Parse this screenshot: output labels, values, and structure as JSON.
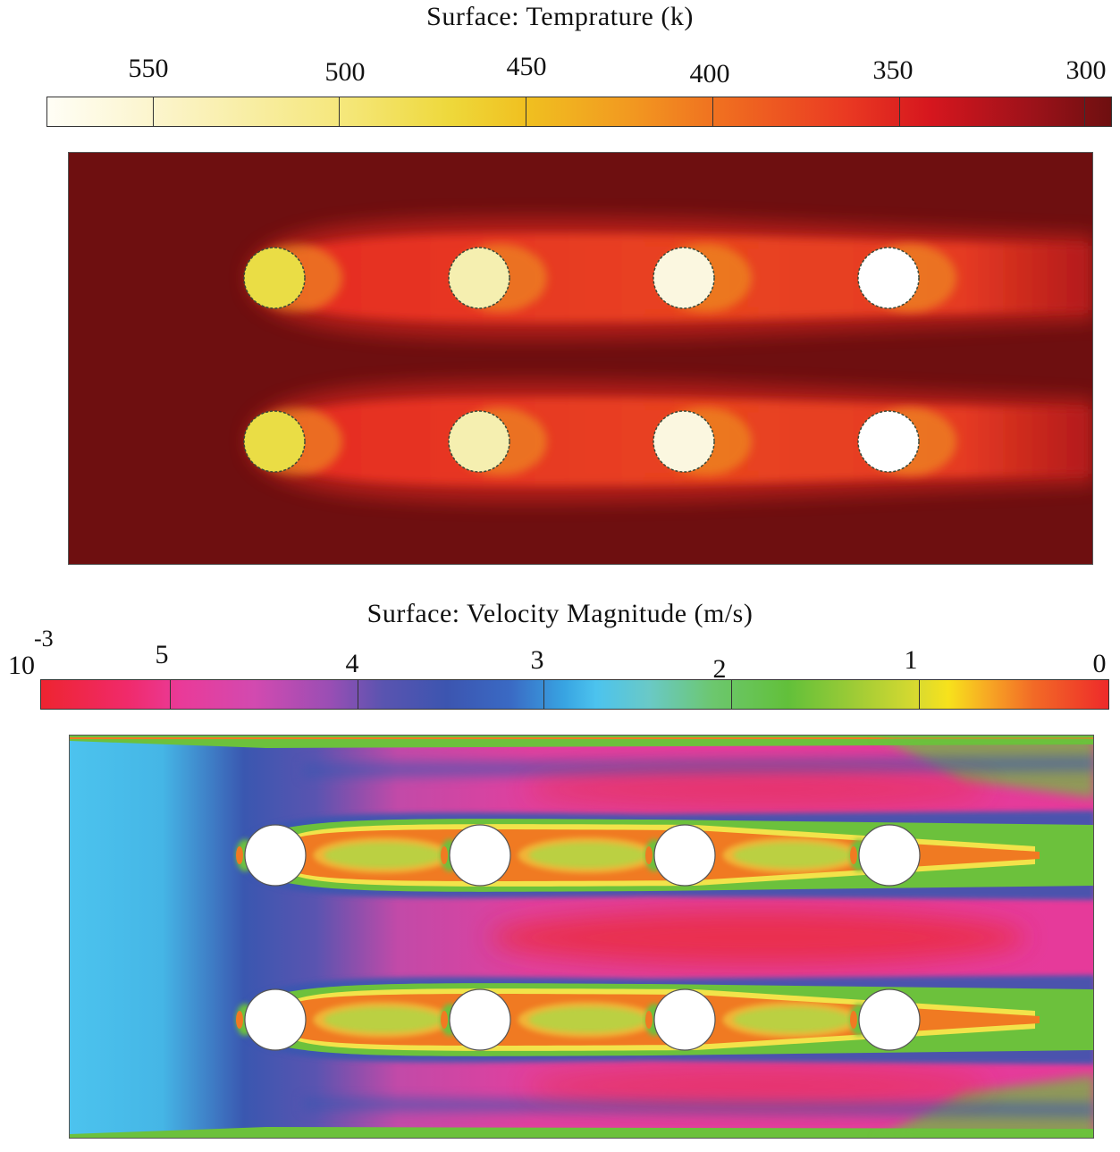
{
  "temperature": {
    "title": "Surface: Temprature (k)",
    "colorbar_ticks": [
      "550",
      "500",
      "450",
      "400",
      "350",
      "300"
    ],
    "colors": {
      "background": "#6e0f10",
      "wake": "#e52a22",
      "cylinder_hot": "#eadd45",
      "cylinder_mid": "#f5efb0",
      "cylinder_cool": "#fbf7e0",
      "cylinder_white": "#ffffff"
    }
  },
  "velocity": {
    "title": "Surface: Velocity Magnitude (m/s)",
    "colorbar_prefix": "10",
    "colorbar_exponent": "-3",
    "colorbar_ticks": [
      "5",
      "4",
      "3",
      "2",
      "1",
      "0"
    ],
    "colors": {
      "inlet": "#4cc3ee",
      "blue": "#3a57b0",
      "magenta": "#e6349a",
      "red": "#ec2a36",
      "green": "#6cc13c",
      "yellow": "#f2e34a",
      "orange": "#f07a22",
      "cylinder": "#ffffff"
    }
  },
  "cylinder_grid": {
    "rows": 2,
    "columns": 4
  }
}
